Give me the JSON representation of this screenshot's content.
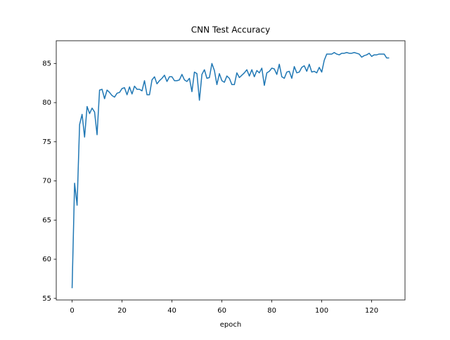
{
  "chart_data": {
    "type": "line",
    "title": "CNN Test Accuracy",
    "x_label": "epoch",
    "x": [
      0,
      1,
      2,
      3,
      4,
      5,
      6,
      7,
      8,
      9,
      10,
      11,
      12,
      13,
      14,
      15,
      16,
      17,
      18,
      19,
      20,
      21,
      22,
      23,
      24,
      25,
      26,
      27,
      28,
      29,
      30,
      31,
      32,
      33,
      34,
      35,
      36,
      37,
      38,
      39,
      40,
      41,
      42,
      43,
      44,
      45,
      46,
      47,
      48,
      49,
      50,
      51,
      52,
      53,
      54,
      55,
      56,
      57,
      58,
      59,
      60,
      61,
      62,
      63,
      64,
      65,
      66,
      67,
      68,
      69,
      70,
      71,
      72,
      73,
      74,
      75,
      76,
      77,
      78,
      79,
      80,
      81,
      82,
      83,
      84,
      85,
      86,
      87,
      88,
      89,
      90,
      91,
      92,
      93,
      94,
      95,
      96,
      97,
      98,
      99,
      100,
      101,
      102,
      103,
      104,
      105,
      106,
      107,
      108,
      109,
      110,
      111,
      112,
      113,
      114,
      115,
      116,
      117,
      118,
      119,
      120,
      121,
      122,
      123,
      124,
      125,
      126,
      127
    ],
    "values": [
      56.3,
      69.7,
      66.9,
      77.2,
      78.5,
      75.6,
      79.5,
      78.6,
      79.3,
      78.8,
      75.9,
      81.6,
      81.7,
      80.5,
      81.6,
      81.3,
      80.9,
      80.7,
      81.2,
      81.3,
      81.8,
      81.9,
      81.0,
      82.0,
      81.1,
      82.1,
      81.7,
      81.7,
      81.5,
      82.8,
      81.0,
      81.0,
      82.9,
      83.3,
      82.4,
      82.8,
      83.1,
      83.5,
      82.7,
      83.3,
      83.3,
      82.8,
      82.8,
      82.9,
      83.6,
      82.9,
      82.7,
      83.1,
      81.4,
      83.9,
      83.7,
      80.3,
      83.6,
      84.2,
      83.1,
      83.2,
      85.0,
      84.1,
      82.3,
      83.7,
      82.8,
      82.6,
      83.4,
      83.1,
      82.3,
      82.3,
      83.8,
      83.2,
      83.5,
      83.8,
      84.2,
      83.4,
      84.2,
      83.3,
      84.1,
      83.8,
      84.4,
      82.2,
      83.8,
      84.0,
      84.4,
      84.3,
      83.6,
      84.9,
      83.3,
      83.1,
      83.9,
      84.0,
      83.1,
      84.6,
      83.8,
      83.9,
      84.5,
      84.7,
      84.0,
      84.9,
      83.9,
      84.0,
      83.8,
      84.5,
      83.9,
      85.4,
      86.2,
      86.2,
      86.2,
      86.4,
      86.2,
      86.1,
      86.3,
      86.3,
      86.4,
      86.3,
      86.3,
      86.4,
      86.3,
      86.2,
      85.8,
      86.0,
      86.1,
      86.3,
      85.9,
      86.1,
      86.1,
      86.2,
      86.2,
      86.2,
      85.7,
      85.7
    ],
    "color": "#1f77b4",
    "xlim": [
      -6.35,
      133.35
    ],
    "xticks": [
      0,
      20,
      40,
      60,
      80,
      100,
      120
    ],
    "ylim": [
      54.8,
      87.9
    ],
    "yticks": [
      55,
      60,
      65,
      70,
      75,
      80,
      85
    ]
  }
}
